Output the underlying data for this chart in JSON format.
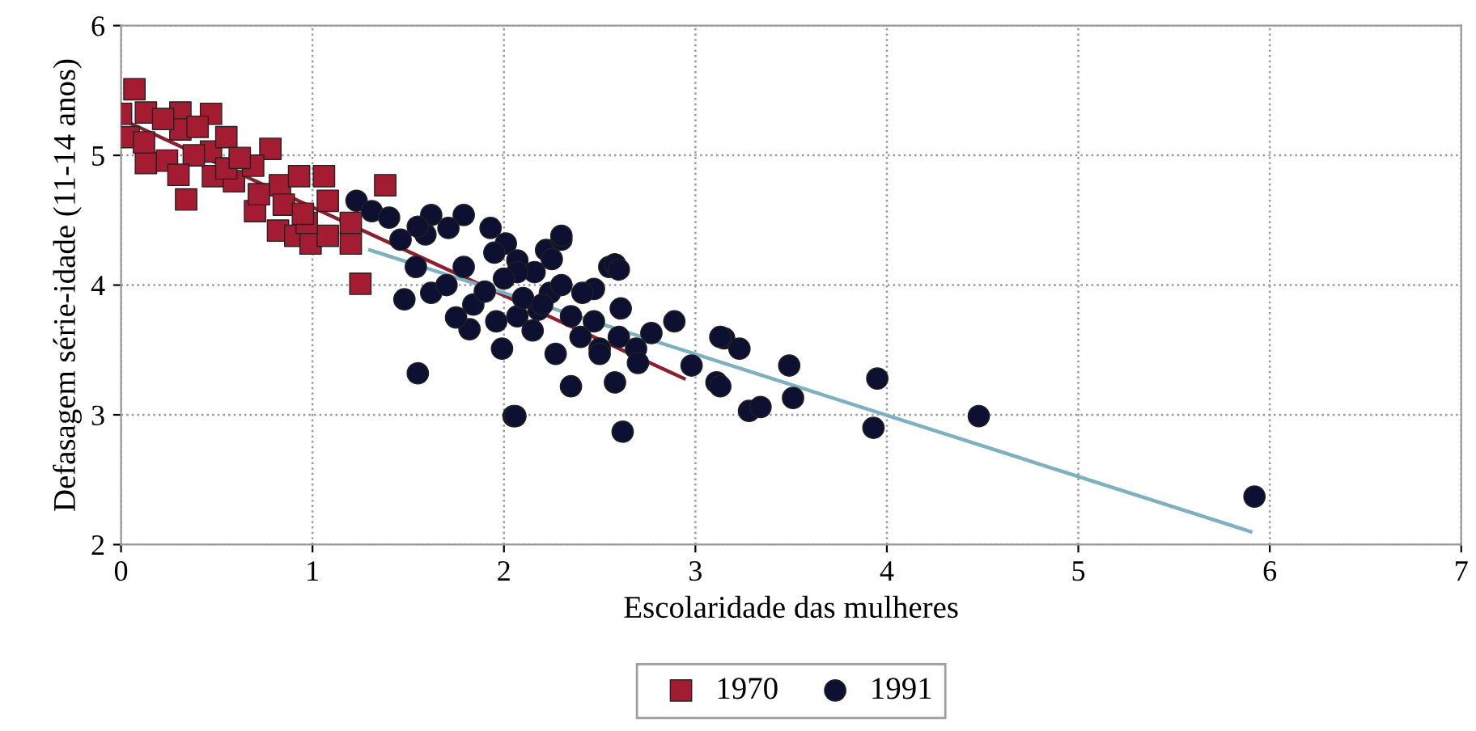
{
  "chart_data": {
    "type": "scatter",
    "xlabel": "Escolaridade das mulheres",
    "ylabel": "Defasagem série-idade (11-14 anos)",
    "xlim": [
      0,
      7
    ],
    "ylim": [
      2,
      6
    ],
    "xticks": [
      0,
      1,
      2,
      3,
      4,
      5,
      6,
      7
    ],
    "yticks": [
      2,
      3,
      4,
      5,
      6
    ],
    "grid": true,
    "legend": "bottom",
    "series": [
      {
        "name": "1970",
        "color": "#a31c32",
        "marker": "square",
        "x": [
          0.07,
          0,
          0.13,
          0.31,
          0.47,
          0.04,
          0.31,
          0.13,
          0.24,
          0.47,
          0.55,
          0.78,
          0.34,
          0.48,
          0.59,
          0.69,
          0.83,
          0.93,
          1.06,
          0.7,
          0.82,
          0.91,
          0.99,
          1.08,
          1.08,
          0.97,
          1.2,
          1.2,
          1.38,
          1.25,
          0.22,
          0.38,
          0.55,
          0.62,
          0.12,
          0.85,
          0.95,
          0.72,
          0.4,
          0.3
        ],
        "values": [
          5.51,
          5.32,
          5.33,
          5.33,
          5.32,
          5.14,
          5.2,
          4.94,
          4.96,
          5.03,
          5.14,
          5.05,
          4.66,
          4.84,
          4.8,
          4.92,
          4.77,
          4.84,
          4.84,
          4.57,
          4.42,
          4.38,
          4.32,
          4.38,
          4.65,
          4.48,
          4.32,
          4.48,
          4.77,
          4.01,
          5.28,
          5.0,
          4.9,
          4.98,
          5.1,
          4.62,
          4.55,
          4.7,
          5.22,
          4.85
        ]
      },
      {
        "name": "1991",
        "color": "#0d1030",
        "marker": "circle",
        "x": [
          1.23,
          1.31,
          1.4,
          1.62,
          1.79,
          1.93,
          1.46,
          1.59,
          1.71,
          1.54,
          1.48,
          1.62,
          1.79,
          1.84,
          2.01,
          2.07,
          2.16,
          2.22,
          2.3,
          2.24,
          1.96,
          2.07,
          2.35,
          2.47,
          2.55,
          2.27,
          2.35,
          1.55,
          2.05,
          2.5,
          1.82,
          2.3,
          2.58,
          2.07,
          2.41,
          2.61,
          1.99,
          2.5,
          2.58,
          2.77,
          2.89,
          2.98,
          3.11,
          3.15,
          3.23,
          3.49,
          3.51,
          3.28,
          3.34,
          2.06,
          2.62,
          2.18,
          2.47,
          2.69,
          3.13,
          3.95,
          3.93,
          4.48,
          5.92,
          3.13,
          1.7,
          1.9,
          2.0,
          2.1,
          2.2,
          2.3,
          1.75,
          2.15,
          2.4,
          2.6,
          2.7,
          1.95,
          2.25,
          1.55,
          2.6
        ],
        "values": [
          4.65,
          4.57,
          4.52,
          4.54,
          4.54,
          4.44,
          4.35,
          4.39,
          4.44,
          4.14,
          3.89,
          3.94,
          4.14,
          3.85,
          4.32,
          4.19,
          4.1,
          4.27,
          4.35,
          3.94,
          3.72,
          3.76,
          3.76,
          3.97,
          4.14,
          3.47,
          3.22,
          3.32,
          2.99,
          3.51,
          3.66,
          4.38,
          4.16,
          4.1,
          3.94,
          3.82,
          3.51,
          3.47,
          3.25,
          3.63,
          3.72,
          3.38,
          3.25,
          3.59,
          3.51,
          3.38,
          3.13,
          3.03,
          3.06,
          2.99,
          2.87,
          3.81,
          3.72,
          3.51,
          3.6,
          3.28,
          2.9,
          2.99,
          2.37,
          3.22,
          4.0,
          3.95,
          4.05,
          3.9,
          3.85,
          4.0,
          3.75,
          3.65,
          3.6,
          3.6,
          3.4,
          4.25,
          4.2,
          4.45,
          4.12
        ]
      },
      {
        "type": "line",
        "color": "#8a2030",
        "x": [
          0,
          2.94
        ],
        "values": [
          5.28,
          3.28
        ]
      },
      {
        "type": "line",
        "color": "#7fb0c0",
        "x": [
          1.3,
          5.9
        ],
        "values": [
          4.27,
          2.1
        ]
      }
    ]
  }
}
